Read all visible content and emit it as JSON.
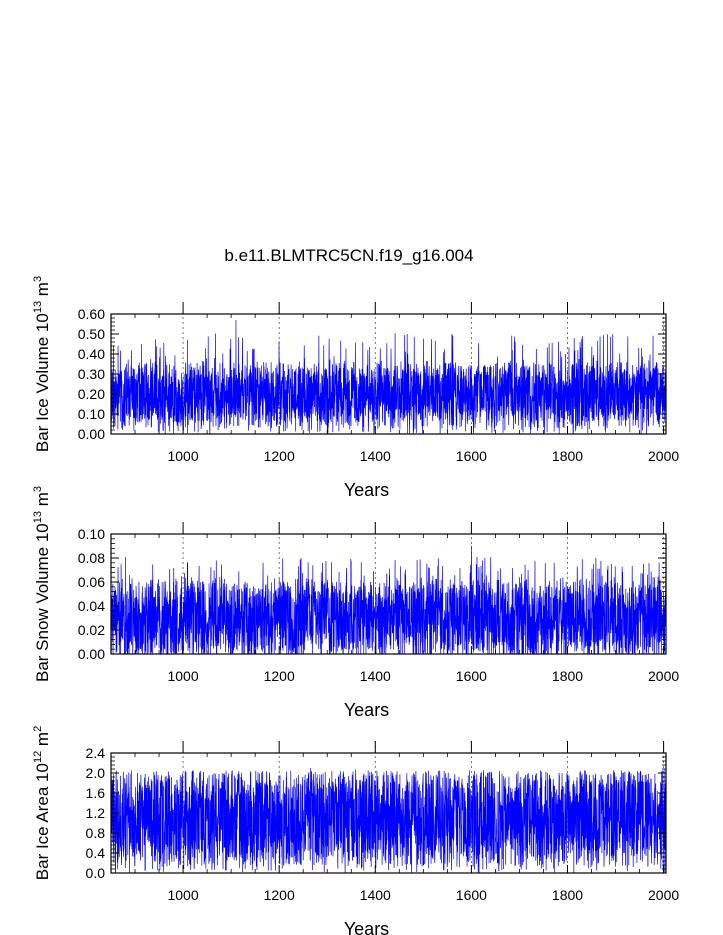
{
  "page_title": "b.e11.BLMTRC5CN.f19_g16.004",
  "chart_data": [
    {
      "type": "line",
      "ylabel": {
        "text": "Bar Ice Volume 10",
        "exp": "13",
        "unit": " m",
        "unit_exp": "3"
      },
      "xlabel": "Years",
      "xlim": [
        850,
        2005
      ],
      "ylim": [
        0.0,
        0.6
      ],
      "x_ticks": [
        1000,
        1200,
        1400,
        1600,
        1800,
        2000
      ],
      "x_tick_labels": [
        "1000",
        "1200",
        "1400",
        "1600",
        "1800",
        "2000"
      ],
      "y_ticks": [
        0.0,
        0.1,
        0.2,
        0.3,
        0.4,
        0.5,
        0.6
      ],
      "y_tick_labels": [
        "0.00",
        "0.10",
        "0.20",
        "0.30",
        "0.40",
        "0.50",
        "0.60"
      ],
      "reference_lines_x": [
        1000,
        1200,
        1400,
        1600,
        1800,
        2000
      ],
      "series": [
        {
          "color": "#0000ff",
          "start_year": 850,
          "end_year": 2005,
          "typical_min": 0.05,
          "typical_max": 0.35,
          "max": 0.57,
          "max_year": 1110
        }
      ]
    },
    {
      "type": "line",
      "ylabel": {
        "text": "Bar Snow Volume 10",
        "exp": "13",
        "unit": " m",
        "unit_exp": "3"
      },
      "xlabel": "Years",
      "xlim": [
        850,
        2005
      ],
      "ylim": [
        0.0,
        0.1
      ],
      "x_ticks": [
        1000,
        1200,
        1400,
        1600,
        1800,
        2000
      ],
      "x_tick_labels": [
        "1000",
        "1200",
        "1400",
        "1600",
        "1800",
        "2000"
      ],
      "y_ticks": [
        0.0,
        0.02,
        0.04,
        0.06,
        0.08,
        0.1
      ],
      "y_tick_labels": [
        "0.00",
        "0.02",
        "0.04",
        "0.06",
        "0.08",
        "0.10"
      ],
      "reference_lines_x": [
        1000,
        1200,
        1400,
        1600,
        1800,
        2000
      ],
      "series": [
        {
          "color": "#0000ff",
          "start_year": 850,
          "end_year": 2005,
          "typical_min": 0.0,
          "typical_max": 0.06,
          "max": 0.09,
          "max_year": 1600
        }
      ]
    },
    {
      "type": "line",
      "ylabel": {
        "text": "Bar Ice Area 10",
        "exp": "12",
        "unit": " m",
        "unit_exp": "2"
      },
      "xlabel": "Years",
      "xlim": [
        850,
        2005
      ],
      "ylim": [
        0.0,
        2.4
      ],
      "x_ticks": [
        1000,
        1200,
        1400,
        1600,
        1800,
        2000
      ],
      "x_tick_labels": [
        "1000",
        "1200",
        "1400",
        "1600",
        "1800",
        "2000"
      ],
      "y_ticks": [
        0.0,
        0.4,
        0.8,
        1.2,
        1.6,
        2.0,
        2.4
      ],
      "y_tick_labels": [
        "0.0",
        "0.4",
        "0.8",
        "1.2",
        "1.6",
        "2.0",
        "2.4"
      ],
      "reference_lines_x": [
        1000,
        1200,
        1400,
        1600,
        1800,
        2000
      ],
      "series": [
        {
          "color": "#0000ff",
          "start_year": 850,
          "end_year": 2005,
          "typical_min": 0.2,
          "typical_max": 1.95,
          "max": 2.1,
          "max_year": 1265
        }
      ]
    }
  ]
}
